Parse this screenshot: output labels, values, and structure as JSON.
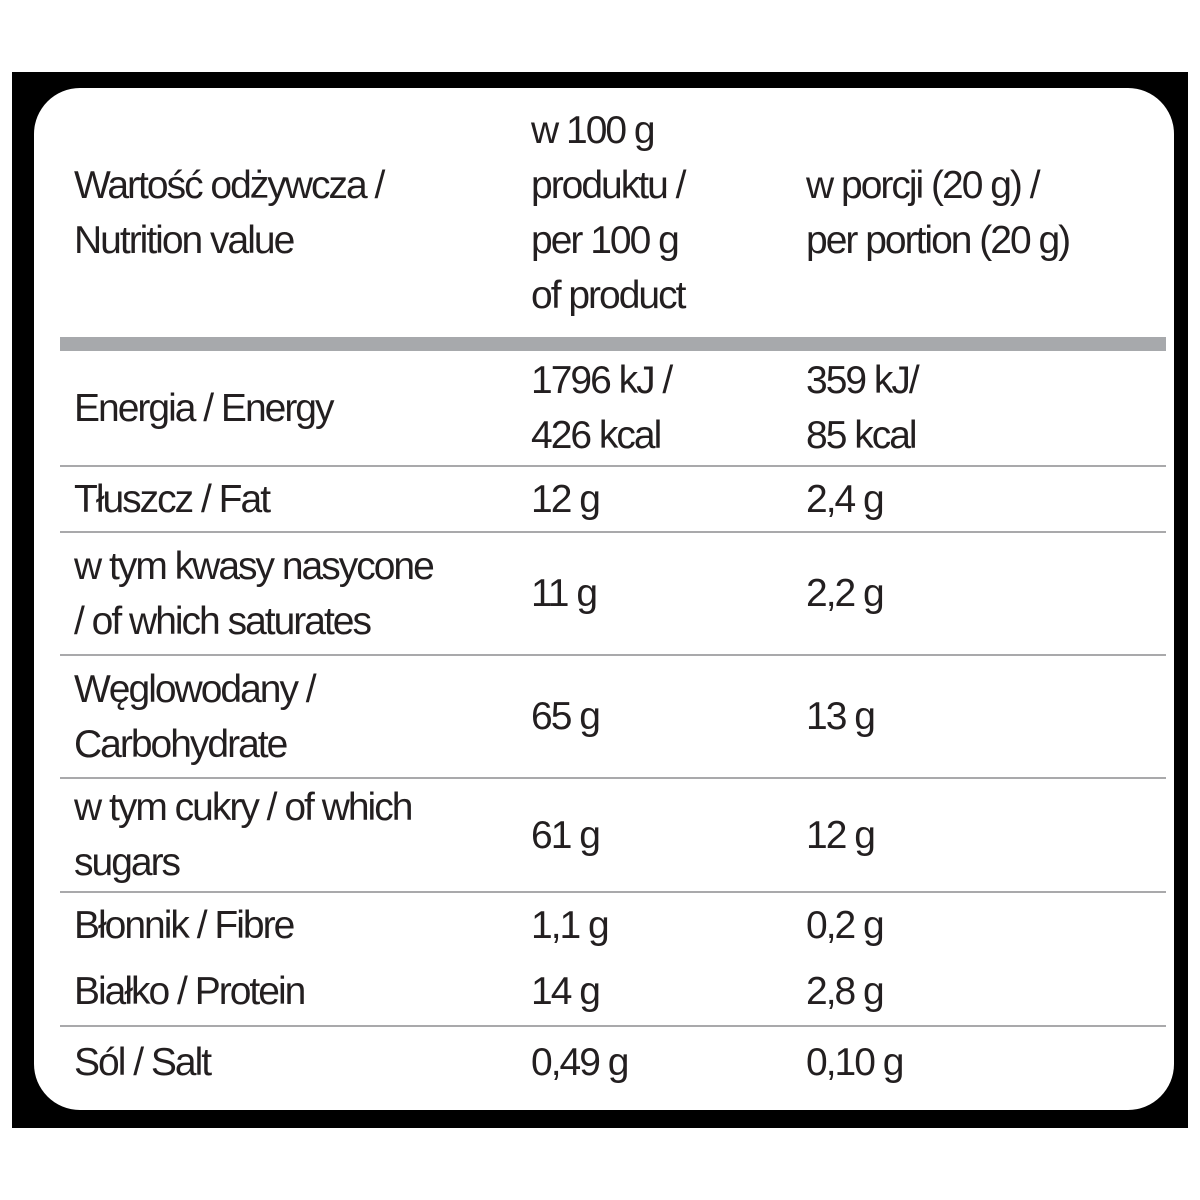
{
  "table": {
    "header": {
      "col1": "Wartość odżywcza /\nNutrition value",
      "col2": "w 100 g\nproduktu /\nper 100 g\nof product",
      "col3": "w porcji (20 g) /\nper portion (20 g)"
    },
    "rows": [
      {
        "name": "Energia / Energy",
        "per100": "1796 kJ /\n426 kcal",
        "portion": "359 kJ/\n85 kcal"
      },
      {
        "name": "Tłuszcz / Fat",
        "per100": "12 g",
        "portion": "2,4 g"
      },
      {
        "name": "w tym kwasy nasycone\n/ of which saturates",
        "per100": "11 g",
        "portion": "2,2 g"
      },
      {
        "name": "Węglowodany /\nCarbohydrate",
        "per100": "65 g",
        "portion": "13 g"
      },
      {
        "name": "w tym cukry / of which\nsugars",
        "per100": "61 g",
        "portion": "12 g"
      },
      {
        "name": "Błonnik / Fibre",
        "per100": "1,1 g",
        "portion": "0,2 g"
      },
      {
        "name": "Białko / Protein",
        "per100": "14 g",
        "portion": "2,8 g"
      },
      {
        "name": "Sól / Salt",
        "per100": "0,49 g",
        "portion": "0,10 g"
      }
    ]
  },
  "colors": {
    "frame": "#000000",
    "text": "#231f20",
    "header_bar": "#a7a9ac",
    "row_separator": "#a9a9ab"
  }
}
